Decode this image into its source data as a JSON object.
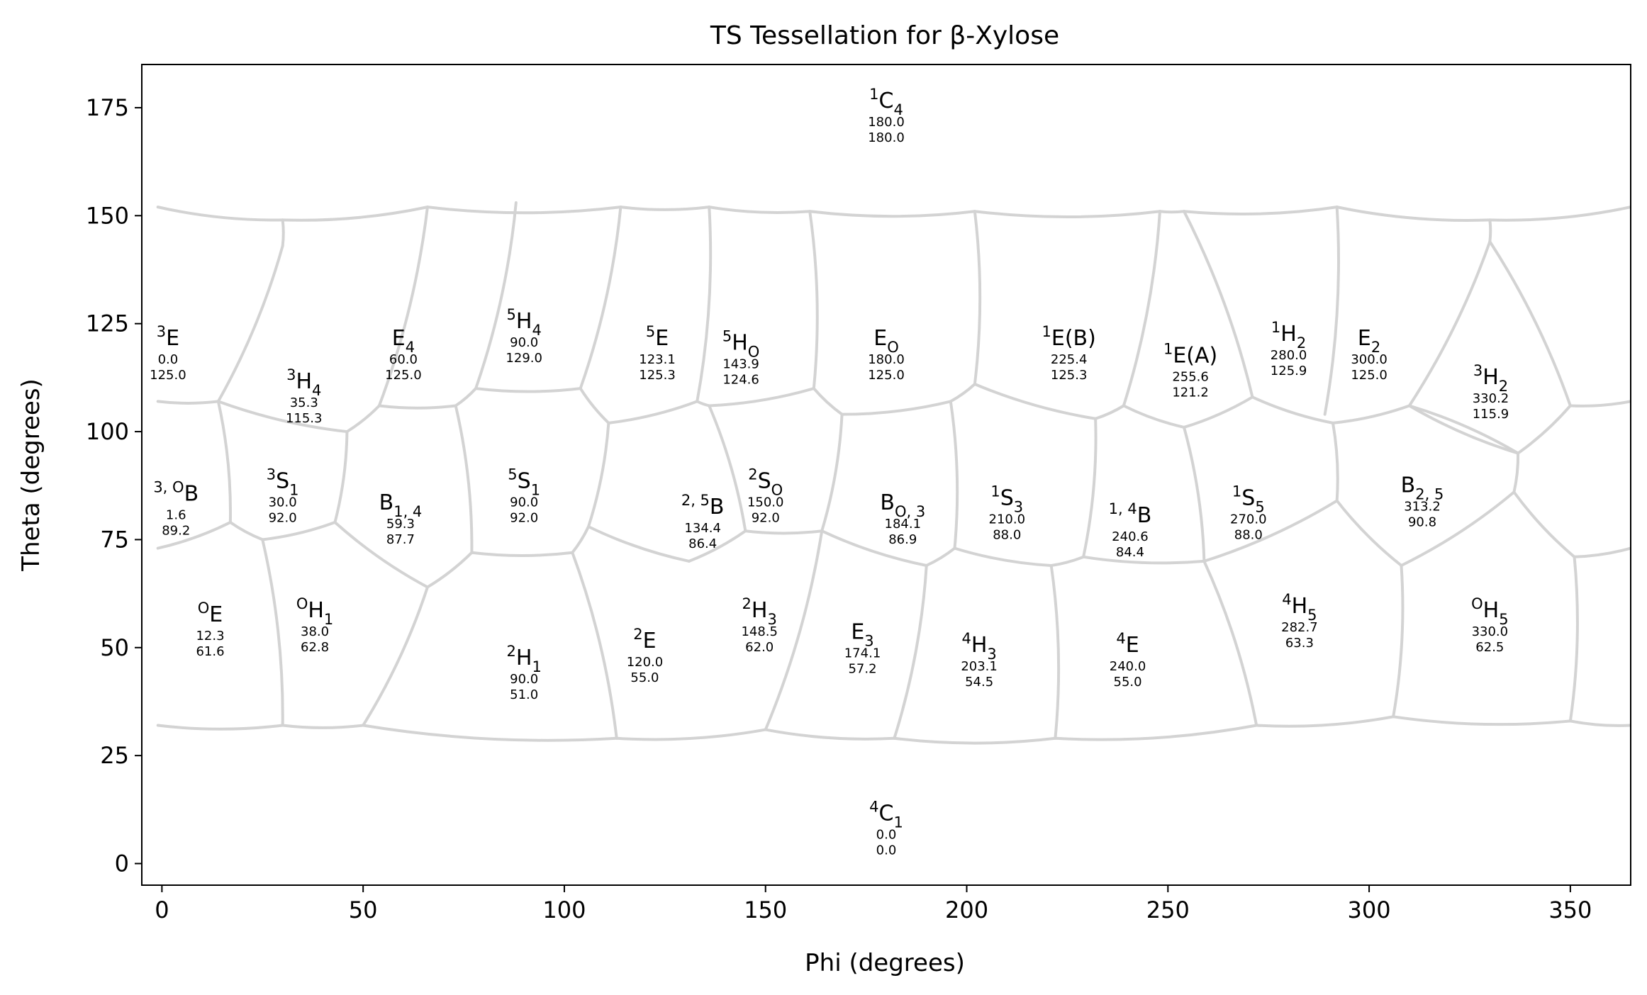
{
  "chart_data": {
    "type": "scatter",
    "title": "TS Tessellation for β-Xylose",
    "xlabel": "Phi (degrees)",
    "ylabel": "Theta (degrees)",
    "xlim": [
      -5,
      365
    ],
    "ylim": [
      185,
      -5
    ],
    "x_ticks": [
      "0",
      "50",
      "100",
      "150",
      "200",
      "250",
      "300",
      "350"
    ],
    "y_ticks": [
      "0",
      "25",
      "50",
      "75",
      "100",
      "125",
      "150",
      "175"
    ],
    "grid": false,
    "edge_color": "#d3d3d3",
    "points": [
      {
        "name": "4C1",
        "phi": 0.0,
        "theta": 0.0,
        "lx": 180,
        "ly": 10,
        "phi_label": "0.0",
        "theta_label": "0.0"
      },
      {
        "name": "OE",
        "phi": 12.3,
        "theta": 61.6,
        "lx": 12,
        "ly": 56,
        "phi_label": "12.3",
        "theta_label": "61.6"
      },
      {
        "name": "OH1",
        "phi": 38.0,
        "theta": 62.8,
        "lx": 38,
        "ly": 57,
        "phi_label": "38.0",
        "theta_label": "62.8"
      },
      {
        "name": "2H1",
        "phi": 90.0,
        "theta": 51.0,
        "lx": 90,
        "ly": 46,
        "phi_label": "90.0",
        "theta_label": "51.0"
      },
      {
        "name": "2E",
        "phi": 120.0,
        "theta": 55.0,
        "lx": 120,
        "ly": 50,
        "phi_label": "120.0",
        "theta_label": "55.0"
      },
      {
        "name": "2H3",
        "phi": 148.5,
        "theta": 62.0,
        "lx": 148.5,
        "ly": 57,
        "phi_label": "148.5",
        "theta_label": "62.0"
      },
      {
        "name": "E3",
        "phi": 174.1,
        "theta": 57.2,
        "lx": 174.1,
        "ly": 52,
        "phi_label": "174.1",
        "theta_label": "57.2"
      },
      {
        "name": "4H3",
        "phi": 203.1,
        "theta": 54.5,
        "lx": 203.1,
        "ly": 49,
        "phi_label": "203.1",
        "theta_label": "54.5"
      },
      {
        "name": "4E",
        "phi": 240.0,
        "theta": 55.0,
        "lx": 240,
        "ly": 49,
        "phi_label": "240.0",
        "theta_label": "55.0"
      },
      {
        "name": "4H5",
        "phi": 282.7,
        "theta": 63.3,
        "lx": 282.7,
        "ly": 58,
        "phi_label": "282.7",
        "theta_label": "63.3"
      },
      {
        "name": "OH5",
        "phi": 330.0,
        "theta": 62.5,
        "lx": 330,
        "ly": 57,
        "phi_label": "330.0",
        "theta_label": "62.5"
      },
      {
        "name": "3,OB",
        "phi": 1.6,
        "theta": 89.2,
        "lx": 3.5,
        "ly": 84,
        "phi_label": "1.6",
        "theta_label": "89.2"
      },
      {
        "name": "3S1",
        "phi": 30.0,
        "theta": 92.0,
        "lx": 30,
        "ly": 87,
        "phi_label": "30.0",
        "theta_label": "92.0"
      },
      {
        "name": "B1,4",
        "phi": 59.3,
        "theta": 87.7,
        "lx": 59.3,
        "ly": 82,
        "phi_label": "59.3",
        "theta_label": "87.7"
      },
      {
        "name": "5S1",
        "phi": 90.0,
        "theta": 92.0,
        "lx": 90,
        "ly": 87,
        "phi_label": "90.0",
        "theta_label": "92.0"
      },
      {
        "name": "2,5B",
        "phi": 134.4,
        "theta": 86.4,
        "lx": 134.4,
        "ly": 81,
        "phi_label": "134.4",
        "theta_label": "86.4"
      },
      {
        "name": "2SO",
        "phi": 150.0,
        "theta": 92.0,
        "lx": 150,
        "ly": 87,
        "phi_label": "150.0",
        "theta_label": "92.0"
      },
      {
        "name": "BO,3",
        "phi": 184.1,
        "theta": 86.9,
        "lx": 184.1,
        "ly": 82,
        "phi_label": "184.1",
        "theta_label": "86.9"
      },
      {
        "name": "1S3",
        "phi": 210.0,
        "theta": 88.0,
        "lx": 210,
        "ly": 83,
        "phi_label": "210.0",
        "theta_label": "88.0"
      },
      {
        "name": "1,4B",
        "phi": 240.6,
        "theta": 84.4,
        "lx": 240.6,
        "ly": 79,
        "phi_label": "240.6",
        "theta_label": "84.4"
      },
      {
        "name": "1S5",
        "phi": 270.0,
        "theta": 88.0,
        "lx": 270,
        "ly": 83,
        "phi_label": "270.0",
        "theta_label": "88.0"
      },
      {
        "name": "B2,5",
        "phi": 313.2,
        "theta": 90.8,
        "lx": 313.2,
        "ly": 86,
        "phi_label": "313.2",
        "theta_label": "90.8"
      },
      {
        "name": "3E",
        "phi": 0.0,
        "theta": 125.0,
        "lx": 1.5,
        "ly": 120,
        "phi_label": "0.0",
        "theta_label": "125.0"
      },
      {
        "name": "3H4",
        "phi": 35.3,
        "theta": 115.3,
        "lx": 35.3,
        "ly": 110,
        "phi_label": "35.3",
        "theta_label": "115.3"
      },
      {
        "name": "E4",
        "phi": 60.0,
        "theta": 125.0,
        "lx": 60,
        "ly": 120,
        "phi_label": "60.0",
        "theta_label": "125.0"
      },
      {
        "name": "5H4",
        "phi": 90.0,
        "theta": 129.0,
        "lx": 90,
        "ly": 124,
        "phi_label": "90.0",
        "theta_label": "129.0"
      },
      {
        "name": "5E",
        "phi": 123.1,
        "theta": 125.3,
        "lx": 123.1,
        "ly": 120,
        "phi_label": "123.1",
        "theta_label": "125.3"
      },
      {
        "name": "5HO",
        "phi": 143.9,
        "theta": 124.6,
        "lx": 143.9,
        "ly": 119,
        "phi_label": "143.9",
        "theta_label": "124.6"
      },
      {
        "name": "EO",
        "phi": 180.0,
        "theta": 125.0,
        "lx": 180,
        "ly": 120,
        "phi_label": "180.0",
        "theta_label": "125.0"
      },
      {
        "name": "1E(B)",
        "phi": 225.4,
        "theta": 125.3,
        "lx": 225.4,
        "ly": 120,
        "phi_label": "225.4",
        "theta_label": "125.3"
      },
      {
        "name": "1E(A)",
        "phi": 255.6,
        "theta": 121.2,
        "lx": 255.6,
        "ly": 116,
        "phi_label": "255.6",
        "theta_label": "121.2"
      },
      {
        "name": "1H2",
        "phi": 280.0,
        "theta": 125.9,
        "lx": 280,
        "ly": 121,
        "phi_label": "280.0",
        "theta_label": "125.9"
      },
      {
        "name": "E2",
        "phi": 300.0,
        "theta": 125.0,
        "lx": 300,
        "ly": 120,
        "phi_label": "300.0",
        "theta_label": "125.0"
      },
      {
        "name": "3H2",
        "phi": 330.2,
        "theta": 115.9,
        "lx": 330.2,
        "ly": 111,
        "phi_label": "330.2",
        "theta_label": "115.9"
      },
      {
        "name": "1C4",
        "phi": 180.0,
        "theta": 180.0,
        "lx": 180,
        "ly": 175,
        "phi_label": "180.0",
        "theta_label": "180.0"
      }
    ]
  }
}
